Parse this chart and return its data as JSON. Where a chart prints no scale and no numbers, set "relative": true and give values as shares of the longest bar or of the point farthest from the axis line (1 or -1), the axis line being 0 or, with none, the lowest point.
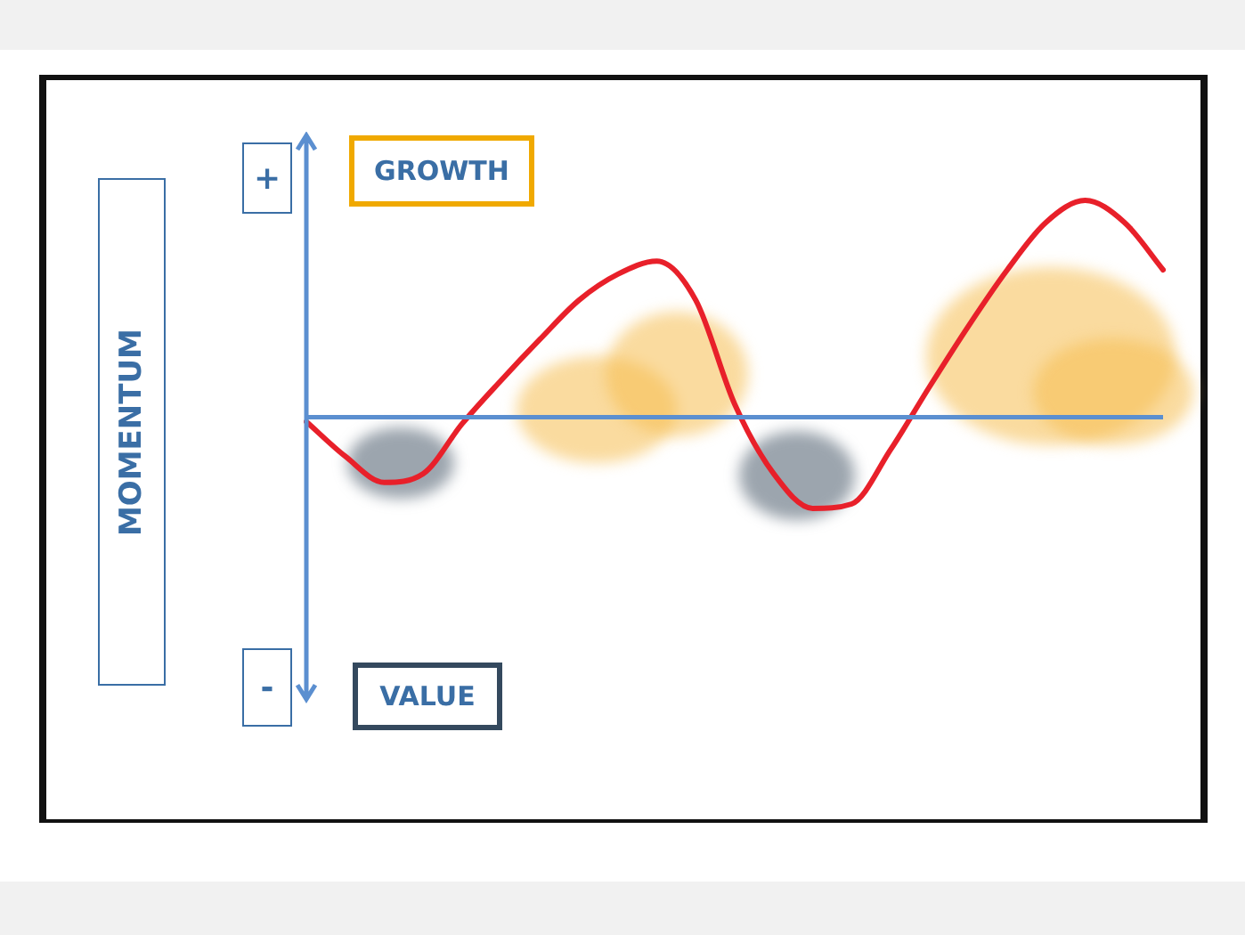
{
  "chart_data": {
    "type": "line",
    "relative": true,
    "annotations": [
      "MOMENTUM",
      "+",
      "-",
      "GROWTH",
      "VALUE"
    ],
    "ref_lines": [
      {
        "axis": "y",
        "value": 0,
        "color": "#5b8fd0"
      }
    ],
    "categories": [
      null,
      null,
      null,
      null,
      null,
      null,
      null,
      null,
      null,
      null,
      null,
      null,
      null,
      null,
      null,
      null,
      null,
      null,
      null,
      null,
      null,
      null,
      null
    ],
    "series": [
      {
        "color": "#e8202a",
        "values": [
          -0.02,
          -0.18,
          -0.3,
          -0.26,
          -0.03,
          0.17,
          0.36,
          0.54,
          0.66,
          0.72,
          0.54,
          0.06,
          -0.26,
          -0.42,
          -0.4,
          -0.15,
          0.14,
          0.42,
          0.68,
          0.9,
          1,
          0.9,
          0.68
        ]
      }
    ],
    "legend": false,
    "grid": false,
    "marker": "none",
    "line_style": "solid"
  }
}
